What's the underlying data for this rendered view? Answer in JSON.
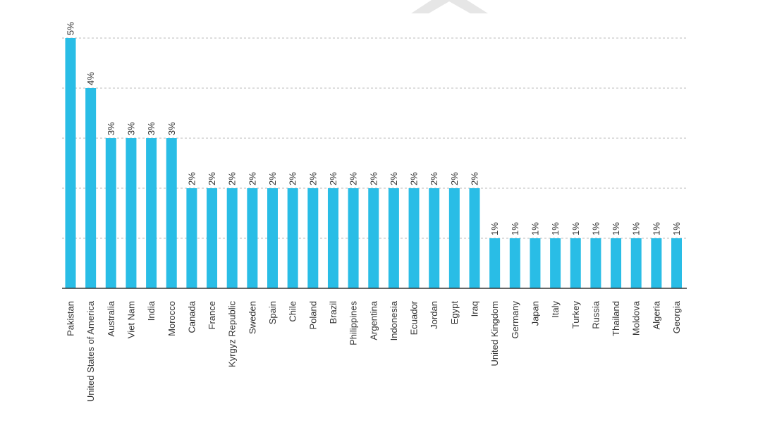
{
  "chart_data": {
    "type": "bar",
    "categories": [
      "Pakistan",
      "United States of America",
      "Australia",
      "Viet Nam",
      "India",
      "Morocco",
      "Canada",
      "France",
      "Kyrgyz Republic",
      "Sweden",
      "Spain",
      "Chile",
      "Poland",
      "Brazil",
      "Philippines",
      "Argentina",
      "Indonesia",
      "Ecuador",
      "Jordan",
      "Egypt",
      "Iraq",
      "United Kingdom",
      "Germany",
      "Japan",
      "Italy",
      "Turkey",
      "Russia",
      "Thailand",
      "Moldova",
      "Algeria",
      "Georgia"
    ],
    "values": [
      5,
      4,
      3,
      3,
      3,
      3,
      2,
      2,
      2,
      2,
      2,
      2,
      2,
      2,
      2,
      2,
      2,
      2,
      2,
      2,
      2,
      1,
      1,
      1,
      1,
      1,
      1,
      1,
      1,
      1,
      1
    ],
    "data_labels": [
      "5%",
      "4%",
      "3%",
      "3%",
      "3%",
      "3%",
      "2%",
      "2%",
      "2%",
      "2%",
      "2%",
      "2%",
      "2%",
      "2%",
      "2%",
      "2%",
      "2%",
      "2%",
      "2%",
      "2%",
      "2%",
      "1%",
      "1%",
      "1%",
      "1%",
      "1%",
      "1%",
      "1%",
      "1%",
      "1%",
      "1%"
    ],
    "unit": "%",
    "ylim": [
      0,
      5
    ],
    "grid": true,
    "legend": "none",
    "title": "",
    "xlabel": "",
    "ylabel": "",
    "bar_color": "#29BDE6",
    "grid_color": "#BBBBBB",
    "axis_color": "#333333",
    "watermark_color": "#E6E6E6"
  }
}
